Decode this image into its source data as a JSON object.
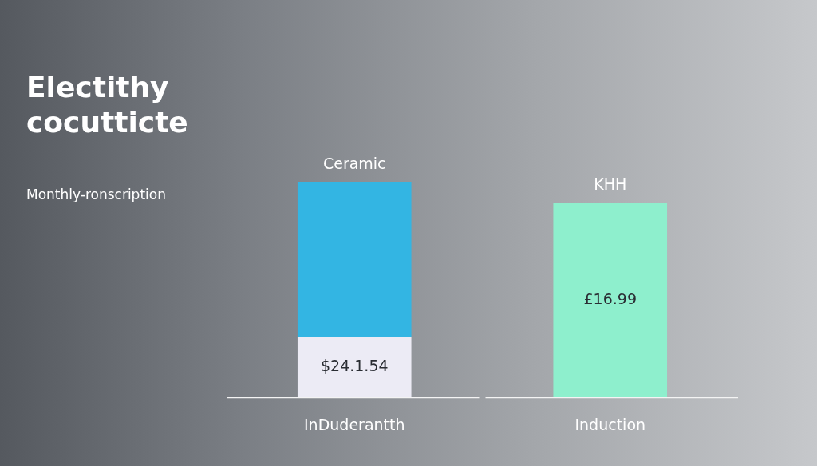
{
  "chart_data": {
    "type": "bar",
    "title": "Electithy cocutticte",
    "subtitle": "Monthly-ronscription",
    "stacked": true,
    "grid": false,
    "legend": false,
    "tick_labels": "x",
    "ylim": [
      0,
      18.8
    ],
    "categories": [
      "InDuderantth",
      "Induction"
    ],
    "series": [
      {
        "colors": [
          "#ecebf5",
          "#8eefcd"
        ],
        "values": [
          5.3,
          16.99
        ],
        "value_labels": [
          "$24.1.54",
          "£16.99"
        ]
      },
      {
        "color": "#33b5e3",
        "values": [
          13.5,
          null
        ]
      }
    ],
    "annotations": [
      {
        "text": "Ceramic",
        "x": "InDuderantth",
        "y": 18.8
      },
      {
        "text": "KHH",
        "x": "Induction",
        "y": 16.99
      }
    ]
  }
}
